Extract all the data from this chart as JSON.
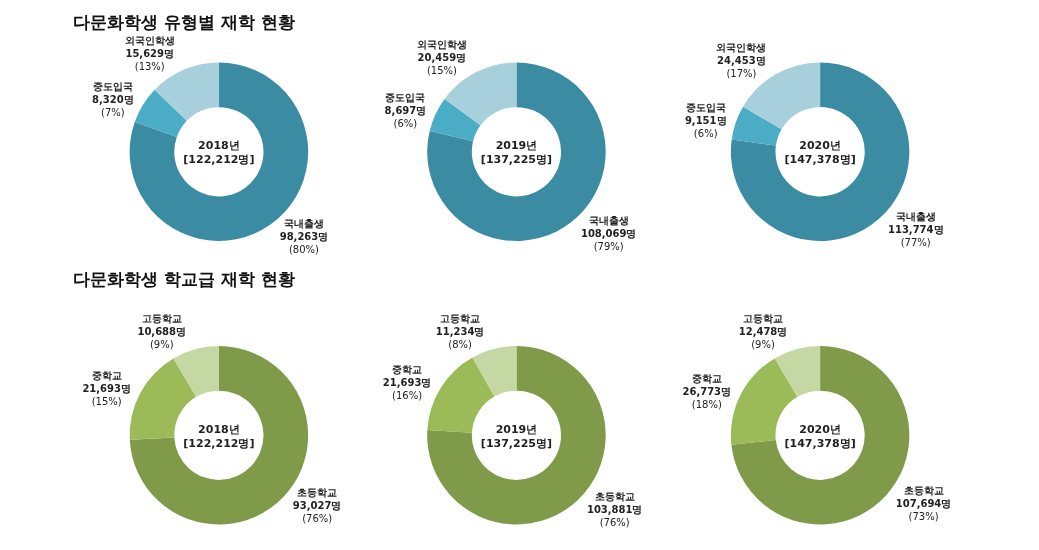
{
  "chart_data": [
    {
      "type": "donut",
      "title": "다문화학생 유형별 재학 현황",
      "categories": [
        "국내출생",
        "중도입국",
        "외국인학생"
      ],
      "values": [
        98263,
        8320,
        15629
      ],
      "colors": [
        "#3b8ca3",
        "#4bacc6",
        "#a8cfdc"
      ],
      "value_labels": [
        "98,263명\n(80%)",
        "8,320명\n(7%)",
        "15,629명\n(13%)"
      ],
      "annotations": [
        "2018년",
        "[122,212명]"
      ]
    },
    {
      "type": "donut",
      "categories": [
        "국내출생",
        "중도입국",
        "외국인학생"
      ],
      "values": [
        108069,
        8697,
        20459
      ],
      "colors": [
        "#3b8ca3",
        "#4bacc6",
        "#a8cfdc"
      ],
      "value_labels": [
        "108,069명\n(79%)",
        "8,697명\n(6%)",
        "20,459명\n(15%)"
      ],
      "annotations": [
        "2019년",
        "[137,225명]"
      ]
    },
    {
      "type": "donut",
      "categories": [
        "국내출생",
        "중도입국",
        "외국인학생"
      ],
      "values": [
        113774,
        9151,
        24453
      ],
      "colors": [
        "#3b8ca3",
        "#4bacc6",
        "#a8cfdc"
      ],
      "value_labels": [
        "113,774명\n(77%)",
        "9,151명\n(6%)",
        "24,453명\n(17%)"
      ],
      "annotations": [
        "2020년",
        "[147,378명]"
      ]
    },
    {
      "type": "donut",
      "title": "다문화학생 학교급 재학 현황",
      "categories": [
        "초등학교",
        "중학교",
        "고등학교"
      ],
      "values": [
        93027,
        21693,
        10688
      ],
      "colors": [
        "#7f9a48",
        "#9bbb59",
        "#c5d7a2"
      ],
      "value_labels": [
        "93,027명\n(76%)",
        "21,693명\n(15%)",
        "10,688명\n(9%)"
      ],
      "annotations": [
        "2018년",
        "[122,212명]"
      ]
    },
    {
      "type": "donut",
      "categories": [
        "초등학교",
        "중학교",
        "고등학교"
      ],
      "values": [
        103881,
        21693,
        11234
      ],
      "colors": [
        "#7f9a48",
        "#9bbb59",
        "#c5d7a2"
      ],
      "value_labels": [
        "103,881명\n(76%)",
        "21,693명\n(16%)",
        "11,234명\n(8%)"
      ],
      "annotations": [
        "2019년",
        "[137,225명]"
      ]
    },
    {
      "type": "donut",
      "categories": [
        "초등학교",
        "중학교",
        "고등학교"
      ],
      "values": [
        107694,
        26773,
        12478
      ],
      "colors": [
        "#7f9a48",
        "#9bbb59",
        "#c5d7a2"
      ],
      "value_labels": [
        "107,694명\n(73%)",
        "26,773명\n(18%)",
        "12,478명\n(9%)"
      ],
      "annotations": [
        "2020년",
        "[147,378명]"
      ]
    }
  ]
}
